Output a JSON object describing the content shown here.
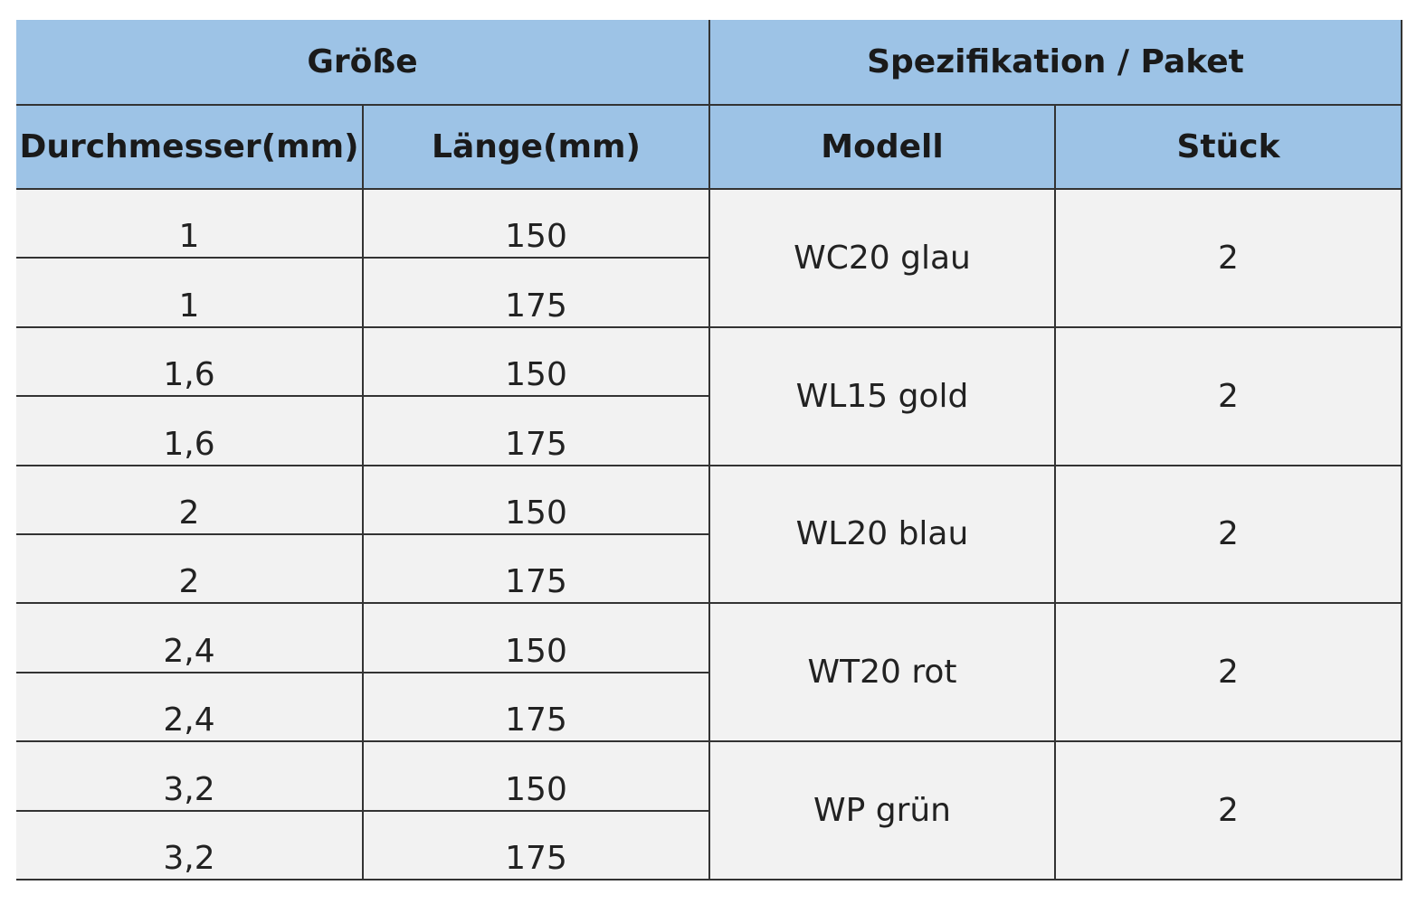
{
  "table": {
    "header": [
      "Größe",
      "Spezifikation / Paket"
    ],
    "columns": [
      "Durchmesser(mm)",
      "Länge(mm)",
      "Modell",
      "Stück"
    ],
    "groups": [
      {
        "model": "WC20 glau",
        "pieces": 2,
        "rows": [
          [
            1,
            150
          ],
          [
            1,
            175
          ]
        ]
      },
      {
        "model": "WL15 gold",
        "pieces": 2,
        "rows": [
          [
            "1,6",
            150
          ],
          [
            "1,6",
            175
          ]
        ]
      },
      {
        "model": "WL20 blau",
        "pieces": 2,
        "rows": [
          [
            2,
            150
          ],
          [
            2,
            175
          ]
        ]
      },
      {
        "model": "WT20 rot",
        "pieces": 2,
        "rows": [
          [
            "2,4",
            150
          ],
          [
            "2,4",
            175
          ]
        ]
      },
      {
        "model": "WP grün",
        "pieces": 2,
        "rows": [
          [
            "3,2",
            150
          ],
          [
            "3,2",
            175
          ]
        ]
      }
    ]
  }
}
